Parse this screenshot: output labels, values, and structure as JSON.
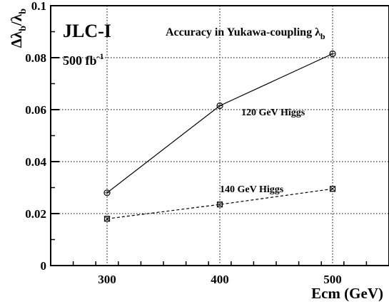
{
  "chart_data": {
    "type": "line",
    "title": "JLC-I",
    "subtitle": "Accuracy in Yukawa-coupling λ",
    "subtitle_sub": "b",
    "annotation": "500 fb",
    "annotation_sup": "-1",
    "xlabel": "Ecm (GeV)",
    "ylabel_parts": [
      "Δλ",
      "b",
      "/λ",
      "b"
    ],
    "xlim": [
      250,
      550
    ],
    "ylim": [
      0,
      0.1
    ],
    "x_ticks": [
      300,
      400,
      500
    ],
    "x_tick_labels": [
      "300",
      "400",
      "500"
    ],
    "y_ticks": [
      0,
      0.02,
      0.04,
      0.06,
      0.08,
      0.1
    ],
    "y_tick_labels": [
      "0",
      "0.02",
      "0.04",
      "0.06",
      "0.08",
      "0.1"
    ],
    "grid": true,
    "series": [
      {
        "name": "120 GeV Higgs",
        "x": [
          300,
          400,
          500
        ],
        "values": [
          0.028,
          0.0615,
          0.0815
        ],
        "style": "solid",
        "marker": "circle"
      },
      {
        "name": "140 GeV Higgs",
        "x": [
          300,
          400,
          500
        ],
        "values": [
          0.018,
          0.0235,
          0.0295
        ],
        "style": "dashed",
        "marker": "square"
      }
    ]
  }
}
